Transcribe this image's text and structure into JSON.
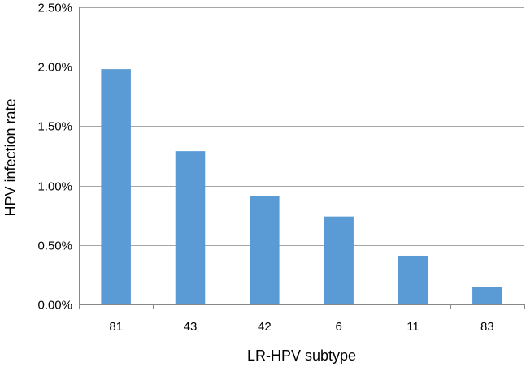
{
  "chart_data": {
    "type": "bar",
    "title": "",
    "xlabel": "LR-HPV subtype",
    "ylabel": "HPV infection rate",
    "categories": [
      "81",
      "43",
      "42",
      "6",
      "11",
      "83"
    ],
    "values": [
      1.98,
      1.29,
      0.91,
      0.74,
      0.41,
      0.15
    ],
    "value_unit": "%",
    "ylim": [
      0,
      2.5
    ],
    "yticks": [
      0,
      0.5,
      1.0,
      1.5,
      2.0,
      2.5
    ],
    "ytick_labels": [
      "0.00%",
      "0.50%",
      "1.00%",
      "1.50%",
      "2.00%",
      "2.50%"
    ],
    "grid": true,
    "legend": "none",
    "bar_color": "#5b9bd5"
  }
}
